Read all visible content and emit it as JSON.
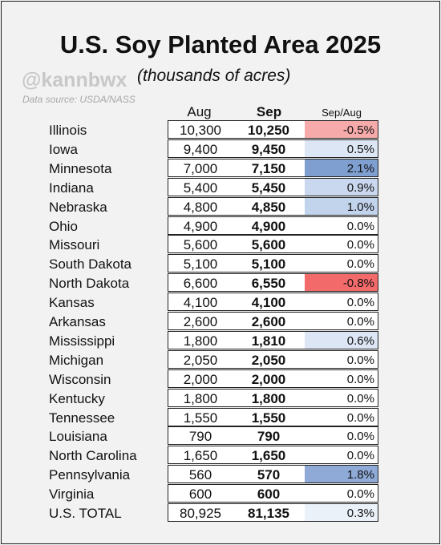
{
  "title": "U.S. Soy Planted Area 2025",
  "handle": "@kannbwx",
  "subtitle": "(thousands of acres)",
  "source": "Data source: USDA/NASS",
  "headers": {
    "aug": "Aug",
    "sep": "Sep",
    "change": "Sep/Aug"
  },
  "colors": {
    "negative_strong": "#f26a6a",
    "negative_light": "#f6aaaa",
    "positive_strong": "#7f9fd0",
    "positive_medium": "#a9bfe0",
    "positive_light": "#c9d8ee",
    "positive_faint": "#dde6f4",
    "total_faint": "#eaf1f9",
    "neutral": "#ffffff"
  },
  "rows": [
    {
      "state": "Illinois",
      "aug": "10,300",
      "sep": "10,250",
      "change": "-0.5%",
      "color": "#f6aaaa"
    },
    {
      "state": "Iowa",
      "aug": "9,400",
      "sep": "9,450",
      "change": "0.5%",
      "color": "#dde6f4"
    },
    {
      "state": "Minnesota",
      "aug": "7,000",
      "sep": "7,150",
      "change": "2.1%",
      "color": "#7f9fd0"
    },
    {
      "state": "Indiana",
      "aug": "5,400",
      "sep": "5,450",
      "change": "0.9%",
      "color": "#c9d8ee"
    },
    {
      "state": "Nebraska",
      "aug": "4,800",
      "sep": "4,850",
      "change": "1.0%",
      "color": "#c2d3ec"
    },
    {
      "state": "Ohio",
      "aug": "4,900",
      "sep": "4,900",
      "change": "0.0%",
      "color": "#ffffff"
    },
    {
      "state": "Missouri",
      "aug": "5,600",
      "sep": "5,600",
      "change": "0.0%",
      "color": "#ffffff"
    },
    {
      "state": "South Dakota",
      "aug": "5,100",
      "sep": "5,100",
      "change": "0.0%",
      "color": "#ffffff"
    },
    {
      "state": "North Dakota",
      "aug": "6,600",
      "sep": "6,550",
      "change": "-0.8%",
      "color": "#f26a6a"
    },
    {
      "state": "Kansas",
      "aug": "4,100",
      "sep": "4,100",
      "change": "0.0%",
      "color": "#ffffff"
    },
    {
      "state": "Arkansas",
      "aug": "2,600",
      "sep": "2,600",
      "change": "0.0%",
      "color": "#ffffff"
    },
    {
      "state": "Mississippi",
      "aug": "1,800",
      "sep": "1,810",
      "change": "0.6%",
      "color": "#dde6f4"
    },
    {
      "state": "Michigan",
      "aug": "2,050",
      "sep": "2,050",
      "change": "0.0%",
      "color": "#ffffff"
    },
    {
      "state": "Wisconsin",
      "aug": "2,000",
      "sep": "2,000",
      "change": "0.0%",
      "color": "#ffffff"
    },
    {
      "state": "Kentucky",
      "aug": "1,800",
      "sep": "1,800",
      "change": "0.0%",
      "color": "#ffffff"
    },
    {
      "state": "Tennessee",
      "aug": "1,550",
      "sep": "1,550",
      "change": "0.0%",
      "color": "#ffffff"
    },
    {
      "state": "Louisiana",
      "aug": "790",
      "sep": "790",
      "change": "0.0%",
      "color": "#ffffff"
    },
    {
      "state": "North Carolina",
      "aug": "1,650",
      "sep": "1,650",
      "change": "0.0%",
      "color": "#ffffff"
    },
    {
      "state": "Pennsylvania",
      "aug": "560",
      "sep": "570",
      "change": "1.8%",
      "color": "#8faad6"
    },
    {
      "state": "Virginia",
      "aug": "600",
      "sep": "600",
      "change": "0.0%",
      "color": "#ffffff"
    },
    {
      "state": "U.S. TOTAL",
      "aug": "80,925",
      "sep": "81,135",
      "change": "0.3%",
      "color": "#eaf1f9"
    }
  ]
}
